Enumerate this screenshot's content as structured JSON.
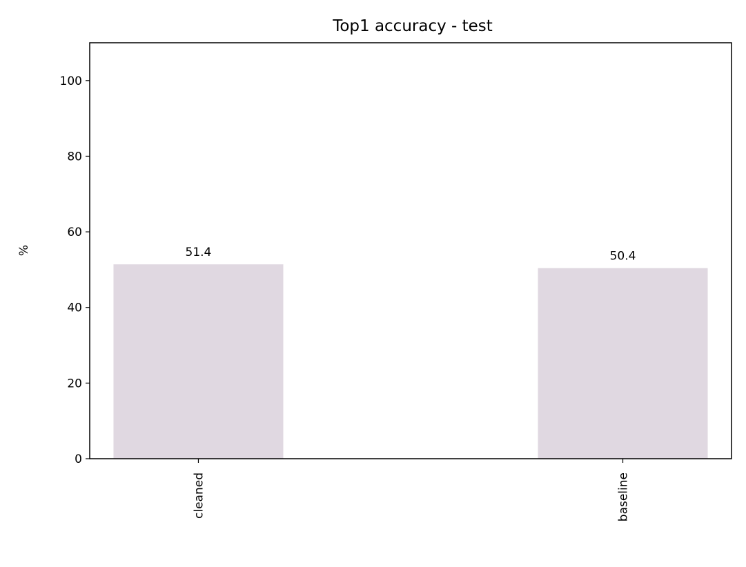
{
  "chart_data": {
    "type": "bar",
    "title": "Top1 accuracy - test",
    "ylabel": "%",
    "xlabel": "",
    "categories": [
      "cleaned",
      "baseline"
    ],
    "values": [
      51.4,
      50.4
    ],
    "data_labels": [
      "51.4",
      "50.4"
    ],
    "ylim": [
      0,
      110
    ],
    "yticks": [
      0,
      20,
      40,
      60,
      80,
      100
    ],
    "grid": false,
    "legend": "none",
    "bar_color": "#e0d8e1",
    "x_tick_rotation": 90
  }
}
